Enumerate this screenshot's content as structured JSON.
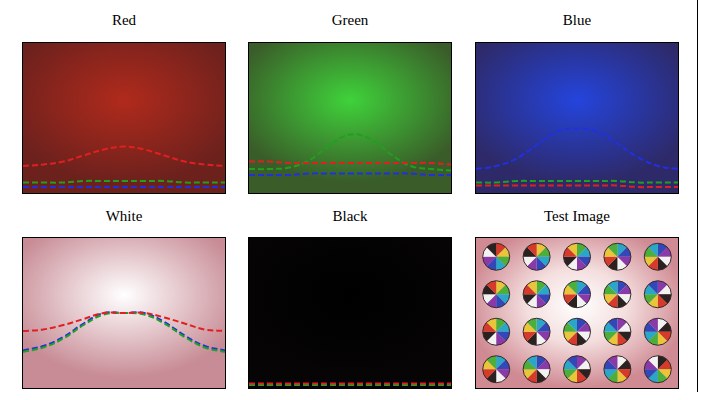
{
  "chart_data": [
    {
      "type": "line",
      "title": "Red",
      "color": "#b02a1c",
      "xlim": [
        0,
        1
      ],
      "ylim": [
        0,
        1
      ],
      "tick_labels": false,
      "grid": false,
      "x": [
        0,
        0.1,
        0.2,
        0.3,
        0.4,
        0.5,
        0.6,
        0.7,
        0.8,
        0.9,
        1
      ],
      "series": [
        {
          "color": "#e02020",
          "line_style": "dashed",
          "values": [
            0.18,
            0.19,
            0.21,
            0.25,
            0.29,
            0.31,
            0.29,
            0.25,
            0.21,
            0.19,
            0.18
          ]
        },
        {
          "color": "#20a020",
          "line_style": "dashed",
          "values": [
            0.07,
            0.07,
            0.07,
            0.08,
            0.08,
            0.08,
            0.08,
            0.08,
            0.07,
            0.07,
            0.07
          ]
        },
        {
          "color": "#2030e0",
          "line_style": "dashed",
          "values": [
            0.04,
            0.04,
            0.04,
            0.04,
            0.04,
            0.04,
            0.04,
            0.04,
            0.04,
            0.04,
            0.04
          ]
        }
      ]
    },
    {
      "type": "line",
      "title": "Green",
      "color": "#3fd23a",
      "xlim": [
        0,
        1
      ],
      "ylim": [
        0,
        1
      ],
      "tick_labels": false,
      "grid": false,
      "x": [
        0,
        0.1,
        0.2,
        0.3,
        0.4,
        0.5,
        0.6,
        0.7,
        0.8,
        0.9,
        1
      ],
      "series": [
        {
          "color": "#e02020",
          "line_style": "dashed",
          "values": [
            0.21,
            0.21,
            0.2,
            0.2,
            0.2,
            0.2,
            0.2,
            0.2,
            0.2,
            0.2,
            0.19
          ]
        },
        {
          "color": "#20a020",
          "line_style": "dashed",
          "values": [
            0.16,
            0.16,
            0.17,
            0.22,
            0.32,
            0.39,
            0.36,
            0.26,
            0.18,
            0.16,
            0.15
          ]
        },
        {
          "color": "#2030e0",
          "line_style": "dashed",
          "values": [
            0.12,
            0.12,
            0.12,
            0.13,
            0.13,
            0.13,
            0.13,
            0.13,
            0.13,
            0.12,
            0.12
          ]
        }
      ]
    },
    {
      "type": "line",
      "title": "Blue",
      "color": "#2444dc",
      "xlim": [
        0,
        1
      ],
      "ylim": [
        0,
        1
      ],
      "tick_labels": false,
      "grid": false,
      "x": [
        0,
        0.1,
        0.2,
        0.3,
        0.4,
        0.5,
        0.6,
        0.7,
        0.8,
        0.9,
        1
      ],
      "series": [
        {
          "color": "#e02020",
          "line_style": "dashed",
          "values": [
            0.05,
            0.05,
            0.05,
            0.05,
            0.05,
            0.05,
            0.05,
            0.05,
            0.04,
            0.04,
            0.04
          ]
        },
        {
          "color": "#20a020",
          "line_style": "dashed",
          "values": [
            0.07,
            0.07,
            0.08,
            0.08,
            0.08,
            0.08,
            0.08,
            0.08,
            0.07,
            0.07,
            0.07
          ]
        },
        {
          "color": "#2030e0",
          "line_style": "dashed",
          "values": [
            0.16,
            0.18,
            0.23,
            0.32,
            0.41,
            0.43,
            0.41,
            0.33,
            0.24,
            0.18,
            0.16
          ]
        }
      ]
    },
    {
      "type": "line",
      "title": "White",
      "color": "#ffffff",
      "xlim": [
        0,
        1
      ],
      "ylim": [
        0,
        1
      ],
      "tick_labels": false,
      "grid": false,
      "x": [
        0,
        0.1,
        0.2,
        0.3,
        0.4,
        0.5,
        0.6,
        0.7,
        0.8,
        0.9,
        1
      ],
      "series": [
        {
          "color": "#e02020",
          "line_style": "dashed",
          "values": [
            0.38,
            0.39,
            0.42,
            0.46,
            0.5,
            0.5,
            0.5,
            0.47,
            0.43,
            0.39,
            0.38
          ]
        },
        {
          "color": "#20a020",
          "line_style": "dashed",
          "values": [
            0.24,
            0.27,
            0.33,
            0.42,
            0.49,
            0.5,
            0.49,
            0.43,
            0.34,
            0.27,
            0.24
          ]
        },
        {
          "color": "#2030e0",
          "line_style": "dashed",
          "values": [
            0.25,
            0.28,
            0.34,
            0.43,
            0.5,
            0.5,
            0.5,
            0.44,
            0.35,
            0.28,
            0.25
          ]
        }
      ]
    },
    {
      "type": "line",
      "title": "Black",
      "color": "#000000",
      "xlim": [
        0,
        1
      ],
      "ylim": [
        0,
        1
      ],
      "tick_labels": false,
      "grid": false,
      "x": [
        0,
        0.1,
        0.2,
        0.3,
        0.4,
        0.5,
        0.6,
        0.7,
        0.8,
        0.9,
        1
      ],
      "series": [
        {
          "color": "#e02020",
          "line_style": "dashed",
          "values": [
            0.03,
            0.03,
            0.03,
            0.03,
            0.03,
            0.03,
            0.03,
            0.03,
            0.03,
            0.03,
            0.03
          ]
        },
        {
          "color": "#20a020",
          "line_style": "dashed",
          "values": [
            0.02,
            0.02,
            0.02,
            0.02,
            0.02,
            0.02,
            0.02,
            0.02,
            0.02,
            0.02,
            0.02
          ]
        },
        {
          "color": "#2030e0",
          "line_style": "dashed",
          "values": [
            0.02,
            0.02,
            0.02,
            0.02,
            0.02,
            0.02,
            0.02,
            0.02,
            0.02,
            0.02,
            0.02
          ]
        }
      ]
    }
  ],
  "test_image": {
    "title": "Test Image",
    "rows": 4,
    "cols": 5,
    "color": "#f4dede"
  }
}
